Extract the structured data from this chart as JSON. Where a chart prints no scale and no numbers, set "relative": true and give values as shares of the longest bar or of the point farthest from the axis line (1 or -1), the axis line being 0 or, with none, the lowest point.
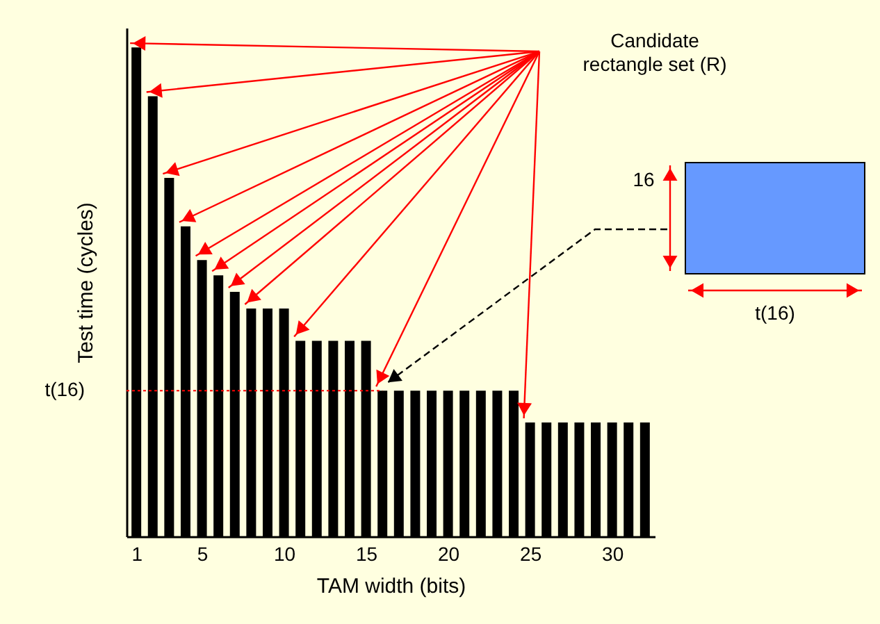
{
  "chart_data": {
    "type": "bar",
    "relative": true,
    "xlabel": "TAM width (bits)",
    "ylabel": "Test time (cycles)",
    "x": [
      1,
      2,
      3,
      4,
      5,
      6,
      7,
      8,
      9,
      10,
      11,
      12,
      13,
      14,
      15,
      16,
      17,
      18,
      19,
      20,
      21,
      22,
      23,
      24,
      25,
      26,
      27,
      28,
      29,
      30,
      31,
      32
    ],
    "values": [
      1,
      0.9,
      0.733,
      0.634,
      0.565,
      0.534,
      0.5,
      0.466,
      0.466,
      0.466,
      0.4,
      0.4,
      0.4,
      0.4,
      0.4,
      0.298,
      0.298,
      0.298,
      0.298,
      0.298,
      0.298,
      0.298,
      0.298,
      0.298,
      0.233,
      0.233,
      0.233,
      0.233,
      0.233,
      0.233,
      0.233,
      0.233
    ],
    "color": "#000000",
    "xlim": [
      0.4,
      32.6
    ],
    "xticks": [
      1,
      5,
      10,
      15,
      20,
      25,
      30
    ],
    "ref_lines": [
      {
        "axis": "y",
        "value": 0.298,
        "label": "t(16)",
        "color": "#ff0000",
        "line_style": "dotted"
      }
    ],
    "annotations": [
      "Candidate rectangle set (R)",
      "16",
      "t(16)"
    ],
    "grid": false
  }
}
